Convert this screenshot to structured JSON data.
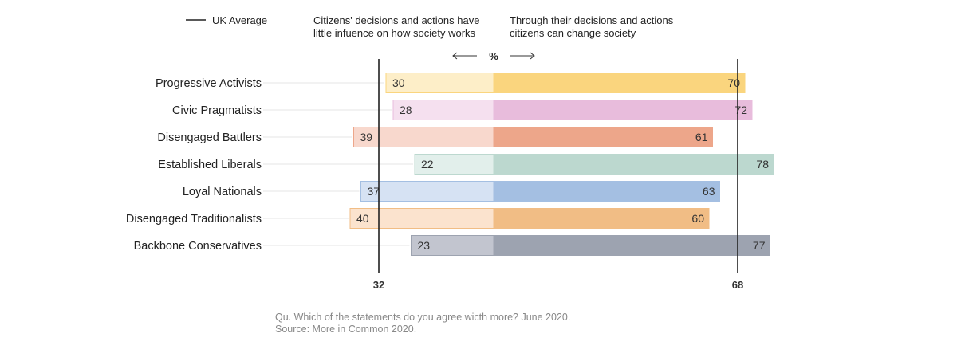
{
  "legend": {
    "average_label": "UK Average"
  },
  "headers": {
    "left": [
      "Citizens' decisions and actions have",
      "little infuence on how society works"
    ],
    "right": [
      "Through their decisions and actions",
      "citizens can change society"
    ],
    "unit": "%"
  },
  "footer": {
    "question": "Qu. Which of the statements do you agree wicth more? June 2020.",
    "source": "Source: More in Common 2020."
  },
  "colors": {
    "Progressive Activists": [
      "#fdeec8",
      "#fad57e"
    ],
    "Civic Pragmatists": [
      "#f5e0ef",
      "#e8bcdc"
    ],
    "Disengaged Battlers": [
      "#f8d8cd",
      "#eda68a"
    ],
    "Established Liberals": [
      "#e2efeb",
      "#bcd8cf"
    ],
    "Loyal Nationals": [
      "#d6e2f3",
      "#a4bfe2"
    ],
    "Disengaged Traditionalists": [
      "#fbe3ce",
      "#f1bd85"
    ],
    "Backbone Conservatives": [
      "#c2c5cf",
      "#9da3b0"
    ]
  },
  "chart_data": {
    "type": "bar",
    "orientation": "horizontal-diverging",
    "categories": [
      "Progressive Activists",
      "Civic Pragmatists",
      "Disengaged Battlers",
      "Established Liberals",
      "Loyal Nationals",
      "Disengaged Traditionalists",
      "Backbone Conservatives"
    ],
    "series": [
      {
        "values": [
          30,
          28,
          39,
          22,
          37,
          40,
          23
        ]
      },
      {
        "values": [
          70,
          72,
          61,
          78,
          63,
          60,
          77
        ]
      }
    ],
    "reference_lines": [
      {
        "series_index": 0,
        "value": 32,
        "label": "32"
      },
      {
        "series_index": 1,
        "value": 68,
        "label": "68"
      }
    ],
    "legend_position": "top-left"
  }
}
